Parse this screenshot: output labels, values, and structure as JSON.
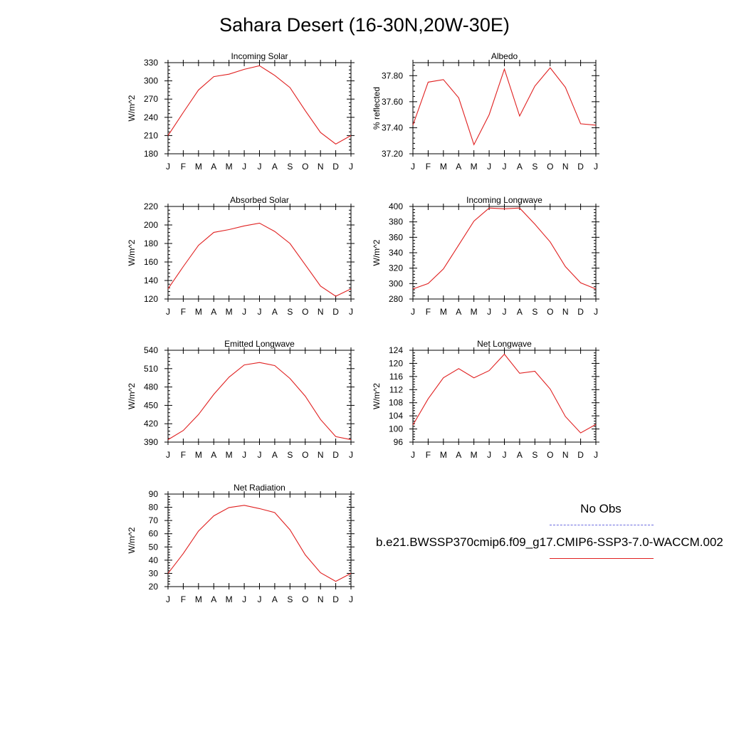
{
  "title": "Sahara Desert (16-30N,20W-30E)",
  "colors": {
    "model": "#e02020",
    "obs": "#6a6ae0",
    "axis": "#000000"
  },
  "legend": {
    "obs_label": "No Obs",
    "model_label": "b.e21.BWSSP370cmip6.f09_g17.CMIP6-SSP3-7.0-WACCM.002"
  },
  "chart_data": [
    {
      "type": "line",
      "title": "Incoming Solar",
      "ylabel": "W/m^2",
      "xlabel": "",
      "categories": [
        "J",
        "F",
        "M",
        "A",
        "M",
        "J",
        "J",
        "A",
        "S",
        "O",
        "N",
        "D",
        "J"
      ],
      "ylim": [
        180,
        330
      ],
      "yticks": [
        180,
        210,
        240,
        270,
        300,
        330
      ],
      "ytick_labels": [
        "180",
        "210",
        "240",
        "270",
        "300",
        "330"
      ],
      "grid": false,
      "series": [
        {
          "values": [
            210,
            248,
            285,
            307,
            311,
            319,
            325,
            309,
            289,
            251,
            215,
            196,
            210
          ]
        }
      ]
    },
    {
      "type": "line",
      "title": "Albedo",
      "ylabel": "% reflected",
      "xlabel": "",
      "categories": [
        "J",
        "F",
        "M",
        "A",
        "M",
        "J",
        "J",
        "A",
        "S",
        "O",
        "N",
        "D",
        "J"
      ],
      "ylim": [
        37.2,
        37.9
      ],
      "yticks": [
        37.2,
        37.4,
        37.6,
        37.8
      ],
      "ytick_labels": [
        "37.20",
        "37.40",
        "37.60",
        "37.80"
      ],
      "grid": false,
      "series": [
        {
          "values": [
            37.42,
            37.75,
            37.77,
            37.63,
            37.27,
            37.5,
            37.85,
            37.49,
            37.72,
            37.86,
            37.71,
            37.43,
            37.42
          ]
        }
      ]
    },
    {
      "type": "line",
      "title": "Absorbed Solar",
      "ylabel": "W/m^2",
      "xlabel": "",
      "categories": [
        "J",
        "F",
        "M",
        "A",
        "M",
        "J",
        "J",
        "A",
        "S",
        "O",
        "N",
        "D",
        "J"
      ],
      "ylim": [
        120,
        220
      ],
      "yticks": [
        120,
        140,
        160,
        180,
        200,
        220
      ],
      "ytick_labels": [
        "120",
        "140",
        "160",
        "180",
        "200",
        "220"
      ],
      "grid": false,
      "series": [
        {
          "values": [
            131,
            155,
            178,
            192,
            195,
            199,
            202,
            193,
            180,
            157,
            134,
            123,
            131
          ]
        }
      ]
    },
    {
      "type": "line",
      "title": "Incoming Longwave",
      "ylabel": "W/m^2",
      "xlabel": "",
      "categories": [
        "J",
        "F",
        "M",
        "A",
        "M",
        "J",
        "J",
        "A",
        "S",
        "O",
        "N",
        "D",
        "J"
      ],
      "ylim": [
        280,
        400
      ],
      "yticks": [
        280,
        300,
        320,
        340,
        360,
        380,
        400
      ],
      "ytick_labels": [
        "280",
        "300",
        "320",
        "340",
        "360",
        "380",
        "400"
      ],
      "grid": false,
      "series": [
        {
          "values": [
            293,
            300,
            319,
            350,
            381,
            398,
            397,
            398,
            377,
            354,
            322,
            301,
            293
          ]
        }
      ]
    },
    {
      "type": "line",
      "title": "Emitted Longwave",
      "ylabel": "W/m^2",
      "xlabel": "",
      "categories": [
        "J",
        "F",
        "M",
        "A",
        "M",
        "J",
        "J",
        "A",
        "S",
        "O",
        "N",
        "D",
        "J"
      ],
      "ylim": [
        390,
        540
      ],
      "yticks": [
        390,
        420,
        450,
        480,
        510,
        540
      ],
      "ytick_labels": [
        "390",
        "420",
        "450",
        "480",
        "510",
        "540"
      ],
      "grid": false,
      "series": [
        {
          "values": [
            394,
            409,
            435,
            468,
            496,
            516,
            520,
            515,
            494,
            465,
            427,
            399,
            394
          ]
        }
      ]
    },
    {
      "type": "line",
      "title": "Net Longwave",
      "ylabel": "W/m^2",
      "xlabel": "",
      "categories": [
        "J",
        "F",
        "M",
        "A",
        "M",
        "J",
        "J",
        "A",
        "S",
        "O",
        "N",
        "D",
        "J"
      ],
      "ylim": [
        96,
        124
      ],
      "yticks": [
        96,
        100,
        104,
        108,
        112,
        116,
        120,
        124
      ],
      "ytick_labels": [
        "96",
        "100",
        "104",
        "108",
        "112",
        "116",
        "120",
        "124"
      ],
      "grid": false,
      "series": [
        {
          "values": [
            101.2,
            109.2,
            115.6,
            118.4,
            115.6,
            117.8,
            122.8,
            117.0,
            117.6,
            112.2,
            103.8,
            98.8,
            101.4
          ]
        }
      ]
    },
    {
      "type": "line",
      "title": "Net Radiation",
      "ylabel": "W/m^2",
      "xlabel": "",
      "categories": [
        "J",
        "F",
        "M",
        "A",
        "M",
        "J",
        "J",
        "A",
        "S",
        "O",
        "N",
        "D",
        "J"
      ],
      "ylim": [
        20,
        90
      ],
      "yticks": [
        20,
        30,
        40,
        50,
        60,
        70,
        80,
        90
      ],
      "ytick_labels": [
        "20",
        "30",
        "40",
        "50",
        "60",
        "70",
        "80",
        "90"
      ],
      "grid": false,
      "series": [
        {
          "values": [
            30,
            45,
            62,
            73.5,
            79.8,
            81.5,
            79,
            76,
            63,
            44,
            30.5,
            24,
            30
          ]
        }
      ]
    }
  ]
}
